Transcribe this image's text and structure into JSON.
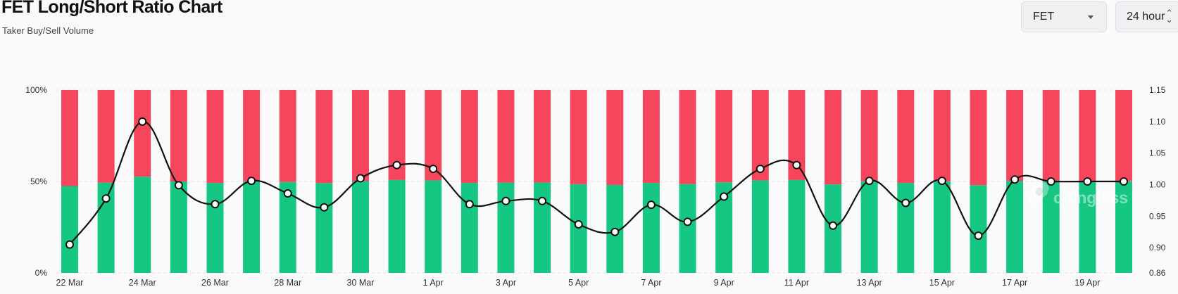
{
  "header": {
    "title": "FET Long/Short Ratio Chart",
    "subtitle": "Taker Buy/Sell Volume"
  },
  "controls": {
    "symbol": "FET",
    "interval": "24 hour"
  },
  "icons": {
    "symbol_caret": "chevron-down-icon",
    "interval_caret": "up-down-chevron-icon"
  },
  "watermark": "coinglass",
  "colors": {
    "buy": "#16c784",
    "sell": "#f6465d",
    "line": "#111111",
    "background": "#fafafa"
  },
  "chart_data": {
    "type": "bar",
    "stacked": true,
    "categories": [
      "22 Mar",
      "23 Mar",
      "24 Mar",
      "25 Mar",
      "26 Mar",
      "27 Mar",
      "28 Mar",
      "29 Mar",
      "30 Mar",
      "31 Mar",
      "1 Apr",
      "2 Apr",
      "3 Apr",
      "4 Apr",
      "5 Apr",
      "6 Apr",
      "7 Apr",
      "8 Apr",
      "9 Apr",
      "10 Apr",
      "11 Apr",
      "12 Apr",
      "13 Apr",
      "14 Apr",
      "15 Apr",
      "16 Apr",
      "17 Apr",
      "18 Apr",
      "19 Apr",
      "20 Apr"
    ],
    "x_tick_labels": [
      "22 Mar",
      "24 Mar",
      "26 Mar",
      "28 Mar",
      "30 Mar",
      "1 Apr",
      "3 Apr",
      "5 Apr",
      "7 Apr",
      "9 Apr",
      "11 Apr",
      "13 Apr",
      "15 Apr",
      "17 Apr",
      "19 Apr"
    ],
    "series": [
      {
        "axis": "left",
        "values": [
          47.5,
          49.4,
          52.6,
          50.0,
          49.2,
          50.1,
          49.7,
          49.1,
          50.2,
          50.8,
          50.6,
          49.2,
          49.4,
          49.4,
          48.5,
          48.1,
          49.2,
          48.6,
          49.5,
          50.6,
          50.8,
          48.4,
          50.1,
          49.2,
          50.1,
          48.0,
          50.2,
          50.1,
          50.1,
          50.1
        ]
      },
      {
        "axis": "left",
        "values": [
          52.5,
          50.6,
          47.4,
          50.0,
          50.8,
          49.9,
          50.3,
          50.9,
          49.8,
          49.2,
          49.4,
          50.8,
          50.6,
          50.6,
          51.5,
          51.9,
          50.8,
          51.4,
          50.5,
          49.4,
          49.2,
          51.6,
          49.9,
          50.8,
          49.9,
          52.0,
          49.8,
          49.9,
          49.9,
          49.9
        ]
      },
      {
        "type": "line",
        "axis": "right",
        "values": [
          0.905,
          0.978,
          1.1,
          0.999,
          0.969,
          1.006,
          0.986,
          0.964,
          1.01,
          1.031,
          1.025,
          0.969,
          0.974,
          0.974,
          0.937,
          0.925,
          0.968,
          0.941,
          0.981,
          1.025,
          1.031,
          0.935,
          1.006,
          0.971,
          1.006,
          0.919,
          1.008,
          1.005,
          1.005,
          1.005
        ]
      }
    ],
    "y_left": {
      "ticks": [
        "0%",
        "50%",
        "100%"
      ],
      "ylim": [
        0,
        100
      ]
    },
    "y_right": {
      "ticks": [
        "0.86",
        "0.90",
        "0.95",
        "1.00",
        "1.05",
        "1.10",
        "1.15"
      ],
      "ylim": [
        0.86,
        1.15
      ]
    },
    "grid": true
  }
}
